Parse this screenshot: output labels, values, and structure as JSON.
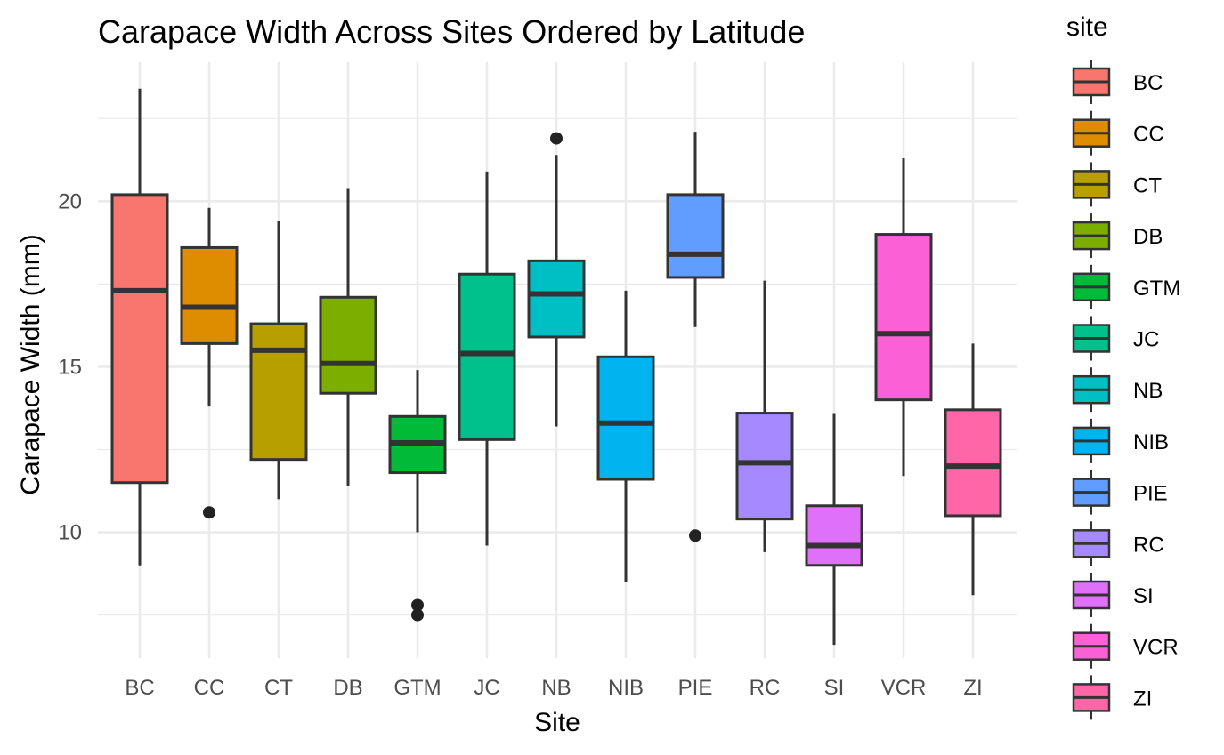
{
  "chart_data": {
    "type": "box",
    "title": "Carapace Width Across Sites Ordered by Latitude",
    "xlabel": "Site",
    "ylabel": "Carapace Width (mm)",
    "ylim": [
      6.2,
      24.2
    ],
    "yticks": [
      10,
      15,
      20
    ],
    "grid": true,
    "legend": {
      "title": "site",
      "position": "right"
    },
    "categories": [
      "BC",
      "CC",
      "CT",
      "DB",
      "GTM",
      "JC",
      "NB",
      "NIB",
      "PIE",
      "RC",
      "SI",
      "VCR",
      "ZI"
    ],
    "series": [
      {
        "category": "BC",
        "color": "#F8766D",
        "lower_whisker": 9.0,
        "q1": 11.5,
        "median": 17.3,
        "q3": 20.2,
        "upper_whisker": 23.4,
        "outliers": []
      },
      {
        "category": "CC",
        "color": "#DE8C00",
        "lower_whisker": 13.8,
        "q1": 15.7,
        "median": 16.8,
        "q3": 18.6,
        "upper_whisker": 19.8,
        "outliers": [
          10.6
        ]
      },
      {
        "category": "CT",
        "color": "#B79F00",
        "lower_whisker": 11.0,
        "q1": 12.2,
        "median": 15.5,
        "q3": 16.3,
        "upper_whisker": 19.4,
        "outliers": []
      },
      {
        "category": "DB",
        "color": "#7CAE00",
        "lower_whisker": 11.4,
        "q1": 14.2,
        "median": 15.1,
        "q3": 17.1,
        "upper_whisker": 20.4,
        "outliers": []
      },
      {
        "category": "GTM",
        "color": "#00BA38",
        "lower_whisker": 10.0,
        "q1": 11.8,
        "median": 12.7,
        "q3": 13.5,
        "upper_whisker": 14.9,
        "outliers": [
          7.8,
          7.5
        ]
      },
      {
        "category": "JC",
        "color": "#00C08B",
        "lower_whisker": 9.6,
        "q1": 12.8,
        "median": 15.4,
        "q3": 17.8,
        "upper_whisker": 20.9,
        "outliers": []
      },
      {
        "category": "NB",
        "color": "#00BFC4",
        "lower_whisker": 13.2,
        "q1": 15.9,
        "median": 17.2,
        "q3": 18.2,
        "upper_whisker": 21.4,
        "outliers": [
          21.9
        ]
      },
      {
        "category": "NIB",
        "color": "#00B4F0",
        "lower_whisker": 8.5,
        "q1": 11.6,
        "median": 13.3,
        "q3": 15.3,
        "upper_whisker": 17.3,
        "outliers": []
      },
      {
        "category": "PIE",
        "color": "#619CFF",
        "lower_whisker": 16.2,
        "q1": 17.7,
        "median": 18.4,
        "q3": 20.2,
        "upper_whisker": 22.1,
        "outliers": [
          9.9
        ]
      },
      {
        "category": "RC",
        "color": "#A58AFF",
        "lower_whisker": 9.4,
        "q1": 10.4,
        "median": 12.1,
        "q3": 13.6,
        "upper_whisker": 17.6,
        "outliers": []
      },
      {
        "category": "SI",
        "color": "#DF70F8",
        "lower_whisker": 6.6,
        "q1": 9.0,
        "median": 9.6,
        "q3": 10.8,
        "upper_whisker": 13.6,
        "outliers": []
      },
      {
        "category": "VCR",
        "color": "#FB61D7",
        "lower_whisker": 11.7,
        "q1": 14.0,
        "median": 16.0,
        "q3": 19.0,
        "upper_whisker": 21.3,
        "outliers": []
      },
      {
        "category": "ZI",
        "color": "#FF66A8",
        "lower_whisker": 8.1,
        "q1": 10.5,
        "median": 12.0,
        "q3": 13.7,
        "upper_whisker": 15.7,
        "outliers": []
      }
    ]
  },
  "colors": {
    "grid": "#ebebeb",
    "box_outline": "#333333",
    "outlier": "#222222"
  }
}
